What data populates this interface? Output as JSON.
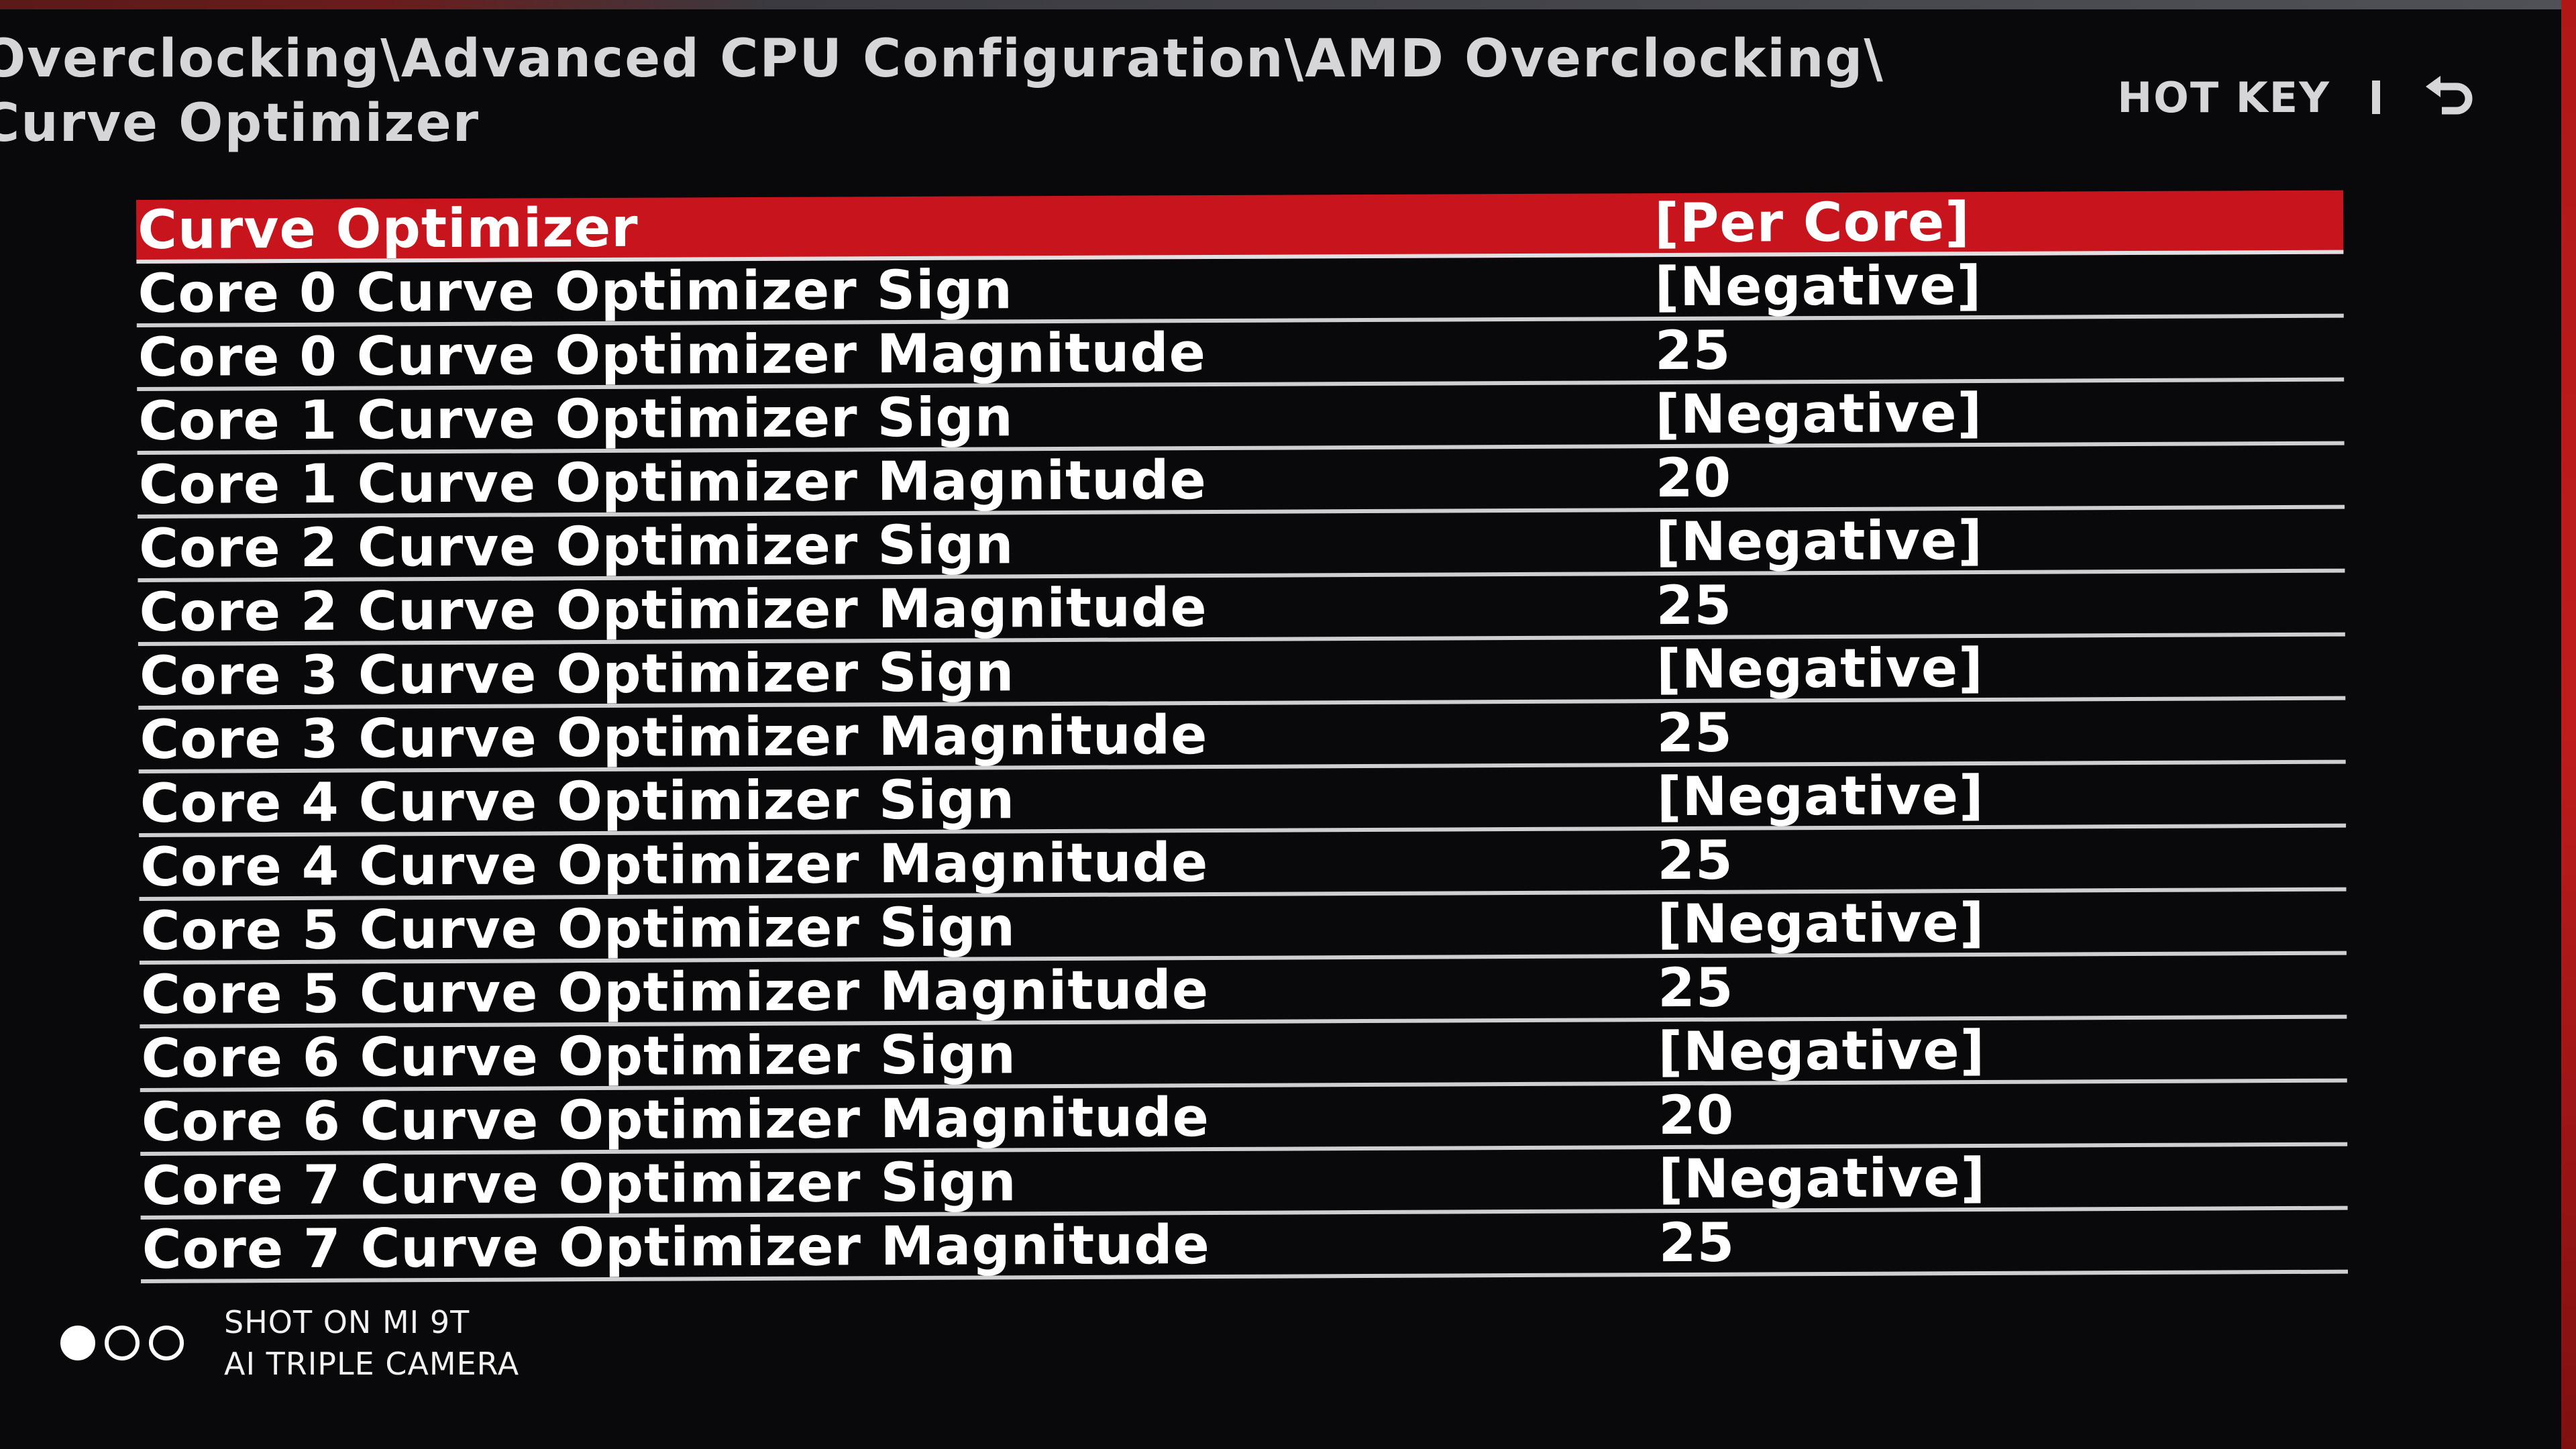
{
  "breadcrumb": {
    "line1": "Overclocking\\Advanced CPU Configuration\\AMD Overclocking\\",
    "line2": "Curve Optimizer"
  },
  "hotkey": {
    "label": "HOT KEY",
    "separator": "|",
    "back_icon": "back-arrow-icon"
  },
  "settings": [
    {
      "label": "Curve Optimizer",
      "value": "[Per Core]",
      "selected": true
    },
    {
      "label": "Core 0 Curve Optimizer Sign",
      "value": "[Negative]"
    },
    {
      "label": "Core 0 Curve Optimizer Magnitude",
      "value": "25"
    },
    {
      "label": "Core 1 Curve Optimizer Sign",
      "value": "[Negative]"
    },
    {
      "label": "Core 1 Curve Optimizer Magnitude",
      "value": "20"
    },
    {
      "label": "Core 2 Curve Optimizer Sign",
      "value": "[Negative]"
    },
    {
      "label": "Core 2 Curve Optimizer Magnitude",
      "value": "25"
    },
    {
      "label": "Core 3 Curve Optimizer Sign",
      "value": "[Negative]"
    },
    {
      "label": "Core 3 Curve Optimizer Magnitude",
      "value": "25"
    },
    {
      "label": "Core 4 Curve Optimizer Sign",
      "value": "[Negative]"
    },
    {
      "label": "Core 4 Curve Optimizer Magnitude",
      "value": "25"
    },
    {
      "label": "Core 5 Curve Optimizer Sign",
      "value": "[Negative]"
    },
    {
      "label": "Core 5 Curve Optimizer Magnitude",
      "value": "25"
    },
    {
      "label": "Core 6 Curve Optimizer Sign",
      "value": "[Negative]"
    },
    {
      "label": "Core 6 Curve Optimizer Magnitude",
      "value": "20"
    },
    {
      "label": "Core 7 Curve Optimizer Sign",
      "value": "[Negative]"
    },
    {
      "label": "Core 7 Curve Optimizer Magnitude",
      "value": "25"
    }
  ],
  "watermark": {
    "line1": "SHOT ON MI 9T",
    "line2": "AI TRIPLE CAMERA"
  },
  "colors": {
    "background": "#09090b",
    "selected_row": "#c8141d",
    "text": "#ffffff",
    "divider": "#cfcfd2"
  }
}
